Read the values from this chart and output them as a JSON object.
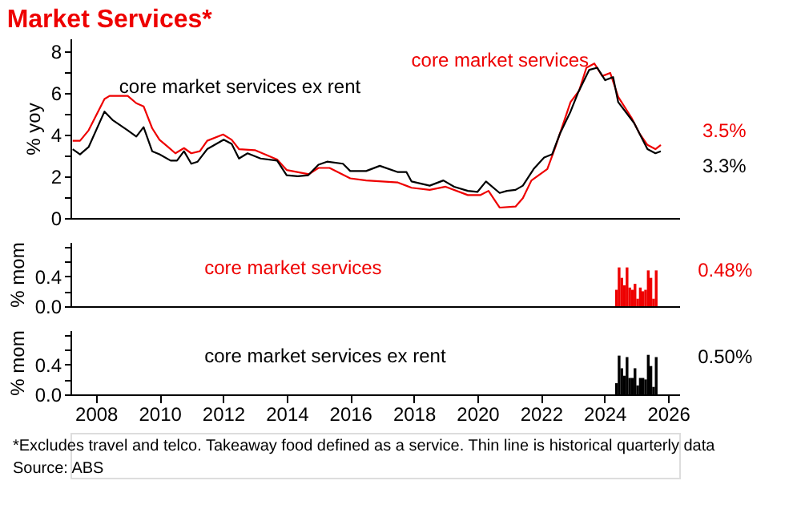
{
  "chart_data": [
    {
      "type": "line",
      "title": "Market Services*",
      "ylabel": "% yoy",
      "tick_labels": "y",
      "xlim": [
        2007.2,
        2026.35
      ],
      "xticks": [
        2008,
        2010,
        2012,
        2014,
        2016,
        2018,
        2020,
        2022,
        2024,
        2026
      ],
      "ylim": [
        0,
        8.6
      ],
      "yticks": [
        0,
        {
          "value": 1,
          "label": null
        },
        2,
        {
          "value": 3,
          "label": null
        },
        4,
        {
          "value": 5,
          "label": null
        },
        6,
        {
          "value": 7,
          "label": null
        },
        8
      ],
      "series": [
        {
          "name": "core market services",
          "color": "#ee0000",
          "x": [
            2007.27,
            2007.5,
            2007.77,
            2008.27,
            2008.43,
            2009.0,
            2009.27,
            2009.5,
            2009.77,
            2010.0,
            2010.27,
            2010.5,
            2010.77,
            2011.0,
            2011.27,
            2011.5,
            2012.0,
            2012.27,
            2012.5,
            2013.0,
            2013.7,
            2014.0,
            2014.7,
            2015.0,
            2015.35,
            2016.0,
            2016.5,
            2017.5,
            2017.93,
            2018.5,
            2019.0,
            2019.7,
            2020.1,
            2020.35,
            2020.7,
            2021.2,
            2021.43,
            2021.7,
            2022.2,
            2022.43,
            2022.93,
            2023.2,
            2023.43,
            2023.68,
            2023.93,
            2024.18,
            2024.43,
            2024.85,
            2025.1,
            2025.35,
            2025.6,
            2025.77
          ],
          "values": [
            3.7,
            3.7,
            4.2,
            5.7,
            5.85,
            5.85,
            5.5,
            5.35,
            4.3,
            3.75,
            3.4,
            3.1,
            3.35,
            3.1,
            3.2,
            3.7,
            4.0,
            3.75,
            3.3,
            3.25,
            2.8,
            2.3,
            2.1,
            2.4,
            2.4,
            1.9,
            1.8,
            1.7,
            1.45,
            1.35,
            1.5,
            1.1,
            1.1,
            1.3,
            0.5,
            0.55,
            0.95,
            1.8,
            2.35,
            3.3,
            5.55,
            6.1,
            7.2,
            7.4,
            6.8,
            6.95,
            5.8,
            4.8,
            4.05,
            3.5,
            3.3,
            3.5
          ]
        },
        {
          "name": "core market services ex rent",
          "color": "#000000",
          "x": [
            2007.27,
            2007.5,
            2007.77,
            2008.27,
            2008.52,
            2009.0,
            2009.27,
            2009.5,
            2009.77,
            2010.0,
            2010.35,
            2010.55,
            2010.77,
            2011.0,
            2011.2,
            2011.5,
            2012.02,
            2012.27,
            2012.5,
            2012.77,
            2013.18,
            2013.7,
            2014.0,
            2014.35,
            2014.68,
            2015.0,
            2015.27,
            2015.77,
            2016.0,
            2016.5,
            2016.93,
            2017.5,
            2017.77,
            2017.93,
            2018.5,
            2018.93,
            2019.27,
            2019.7,
            2020.0,
            2020.27,
            2020.7,
            2020.93,
            2021.2,
            2021.43,
            2021.77,
            2022.1,
            2022.35,
            2022.6,
            2022.93,
            2023.18,
            2023.52,
            2023.77,
            2024.02,
            2024.27,
            2024.43,
            2024.93,
            2025.35,
            2025.6,
            2025.77
          ],
          "values": [
            3.3,
            3.05,
            3.4,
            5.1,
            4.7,
            4.2,
            3.9,
            4.35,
            3.2,
            3.05,
            2.75,
            2.75,
            3.2,
            2.6,
            2.7,
            3.3,
            3.75,
            3.55,
            2.85,
            3.1,
            2.85,
            2.75,
            2.05,
            2.0,
            2.05,
            2.55,
            2.7,
            2.6,
            2.25,
            2.25,
            2.5,
            2.2,
            2.2,
            1.75,
            1.55,
            1.8,
            1.5,
            1.3,
            1.25,
            1.75,
            1.2,
            1.3,
            1.35,
            1.55,
            2.35,
            2.9,
            3.05,
            4.05,
            5.1,
            6.05,
            7.1,
            7.2,
            6.6,
            6.75,
            5.55,
            4.55,
            3.3,
            3.1,
            3.2
          ]
        }
      ],
      "annotations": [
        "3.5%",
        "3.3%"
      ]
    },
    {
      "type": "bar",
      "ylabel": "% mom",
      "tick_labels": "y",
      "xlim": [
        2007.2,
        2026.35
      ],
      "xticks": [
        2008,
        2010,
        2012,
        2014,
        2016,
        2018,
        2020,
        2022,
        2024,
        2026
      ],
      "ylim": [
        0,
        0.86
      ],
      "yticks": [
        {
          "value": 0,
          "label": "0.0"
        },
        {
          "value": 0.2,
          "label": null
        },
        {
          "value": 0.4,
          "label": "0.4"
        },
        {
          "value": 0.6,
          "label": null
        },
        {
          "value": 0.8,
          "label": null
        }
      ],
      "x": [
        2024.375,
        2024.458,
        2024.542,
        2024.625,
        2024.708,
        2024.792,
        2024.875,
        2024.958,
        2025.042,
        2025.125,
        2025.208,
        2025.292,
        2025.375,
        2025.458,
        2025.542,
        2025.625
      ],
      "series": [
        {
          "name": "core market services",
          "color": "#ee0000",
          "values": [
            0.22,
            0.52,
            0.38,
            0.28,
            0.52,
            0.25,
            0.22,
            0.3,
            0.1,
            0.25,
            0.2,
            0.22,
            0.48,
            0.38,
            0.1,
            0.48
          ]
        }
      ],
      "annotations": [
        "0.48%"
      ]
    },
    {
      "type": "bar",
      "ylabel": "% mom",
      "xlim": [
        2007.2,
        2026.35
      ],
      "xticks": [
        2008,
        2010,
        2012,
        2014,
        2016,
        2018,
        2020,
        2022,
        2024,
        2026
      ],
      "ylim": [
        0,
        0.86
      ],
      "yticks": [
        {
          "value": 0,
          "label": "0.0"
        },
        {
          "value": 0.2,
          "label": null
        },
        {
          "value": 0.4,
          "label": "0.4"
        },
        {
          "value": 0.6,
          "label": null
        },
        {
          "value": 0.8,
          "label": null
        }
      ],
      "x": [
        2024.375,
        2024.458,
        2024.542,
        2024.625,
        2024.708,
        2024.792,
        2024.875,
        2024.958,
        2025.042,
        2025.125,
        2025.208,
        2025.292,
        2025.375,
        2025.458,
        2025.542,
        2025.625
      ],
      "series": [
        {
          "name": "core market services ex rent",
          "color": "#000000",
          "values": [
            0.15,
            0.52,
            0.35,
            0.25,
            0.5,
            0.22,
            0.22,
            0.35,
            0.12,
            0.22,
            0.22,
            0.2,
            0.53,
            0.38,
            0.1,
            0.5
          ]
        }
      ],
      "annotations": [
        "0.50%",
        "*Excludes travel and telco. Takeaway food defined as a service. Thin line is historical quarterly data",
        "Source: ABS"
      ]
    }
  ]
}
